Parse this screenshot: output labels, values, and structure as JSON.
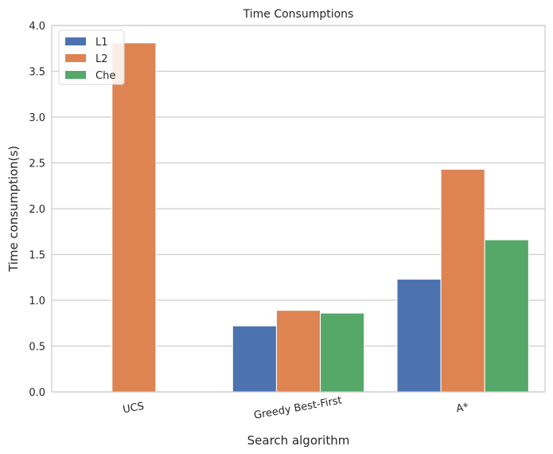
{
  "chart_data": {
    "type": "bar",
    "title": "Time Consumptions",
    "xlabel": "Search algorithm",
    "ylabel": "Time consumption(s)",
    "categories": [
      "UCS",
      "Greedy Best-First",
      "A*"
    ],
    "series": [
      {
        "name": "L1",
        "color": "#4c72b0",
        "values": [
          0.0,
          0.72,
          1.23
        ]
      },
      {
        "name": "L2",
        "color": "#dd8452",
        "values": [
          3.81,
          0.89,
          2.43
        ]
      },
      {
        "name": "Che",
        "color": "#55a868",
        "values": [
          0.0,
          0.86,
          1.66
        ]
      }
    ],
    "ylim": [
      0,
      4.0
    ],
    "yticks": [
      "0.0",
      "0.5",
      "1.0",
      "1.5",
      "2.0",
      "2.5",
      "3.0",
      "3.5",
      "4.0"
    ],
    "grid": "horizontal",
    "legend": "top-left"
  }
}
